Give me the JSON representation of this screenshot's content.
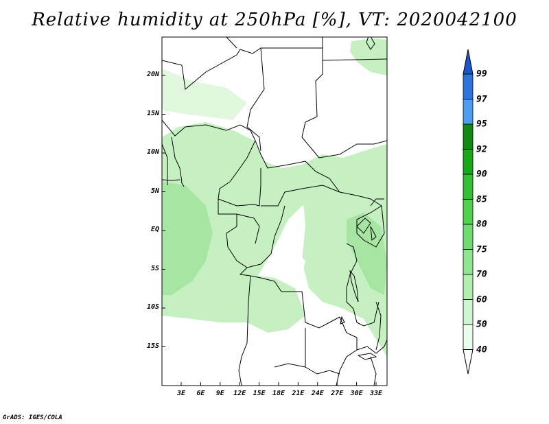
{
  "title": "Relative humidity at 250hPa [%], VT: 2020042100",
  "credit": "GrADS: IGES/COLA",
  "lat_labels": [
    "20N",
    "15N",
    "10N",
    "5N",
    "EQ",
    "5S",
    "10S",
    "15S"
  ],
  "lon_labels": [
    "3E",
    "6E",
    "9E",
    "12E",
    "15E",
    "18E",
    "21E",
    "24E",
    "27E",
    "30E",
    "33E"
  ],
  "colorbar": {
    "labels": [
      "99",
      "97",
      "95",
      "92",
      "90",
      "85",
      "80",
      "75",
      "70",
      "60",
      "50",
      "40"
    ],
    "colors": [
      "#1c57c9",
      "#2e74de",
      "#4e9ef0",
      "#128a12",
      "#1aa81a",
      "#34bf34",
      "#4fd34f",
      "#6edc6e",
      "#8fe68f",
      "#b1efb1",
      "#cff7cf",
      "#eafcea"
    ]
  },
  "colors": {
    "humid_light": "#c6f0c2",
    "humid_pale": "#e2f8de",
    "humid_mid": "#a7e6a2"
  }
}
